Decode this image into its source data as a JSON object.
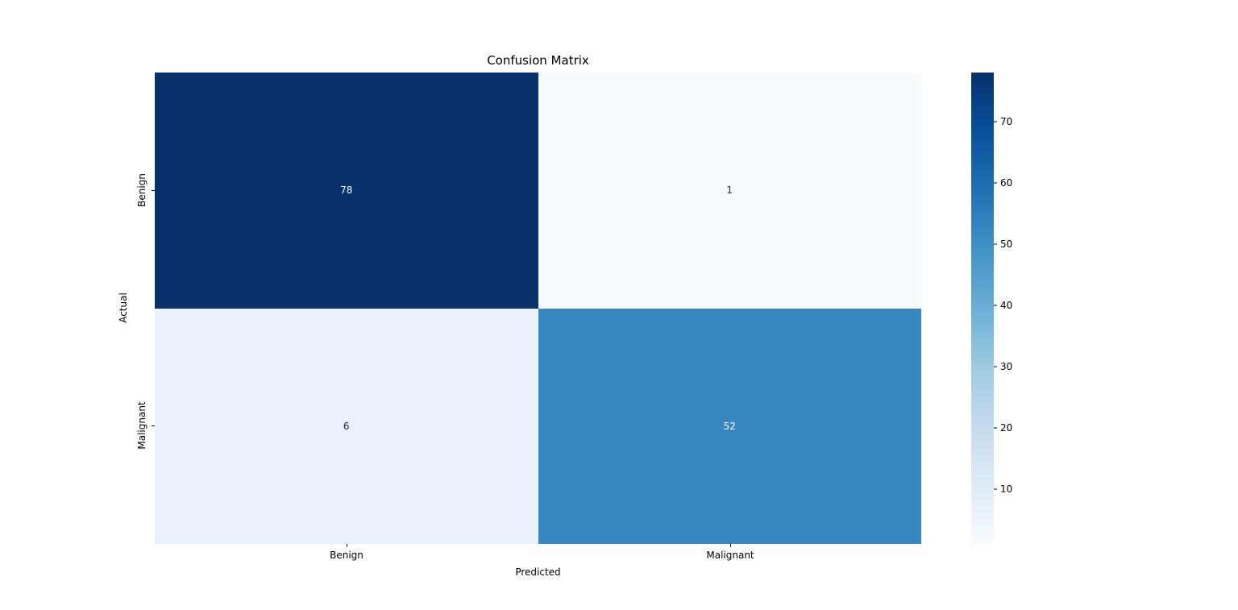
{
  "chart_data": {
    "type": "heatmap",
    "title": "Confusion Matrix",
    "xlabel": "Predicted",
    "ylabel": "Actual",
    "x_categories": [
      "Benign",
      "Malignant"
    ],
    "y_categories": [
      "Benign",
      "Malignant"
    ],
    "matrix": [
      [
        78,
        1
      ],
      [
        6,
        52
      ]
    ],
    "vmin": 1,
    "vmax": 78,
    "colormap": "Blues",
    "grid": false,
    "cell_colors": [
      [
        "#08306b",
        "#f7fbff"
      ],
      [
        "#e9f1fa",
        "#3887c0"
      ]
    ],
    "cell_text_colors": [
      [
        "#ffffff",
        "#262626"
      ],
      [
        "#262626",
        "#ffffff"
      ]
    ],
    "colorbar": {
      "position": "right",
      "ticks": [
        10,
        20,
        30,
        40,
        50,
        60,
        70
      ],
      "gradient_top_to_bottom": [
        "#08306b",
        "#08519c",
        "#2171b5",
        "#4292c6",
        "#6baed6",
        "#9ecae1",
        "#c6dbef",
        "#deebf7",
        "#f7fbff"
      ]
    }
  }
}
